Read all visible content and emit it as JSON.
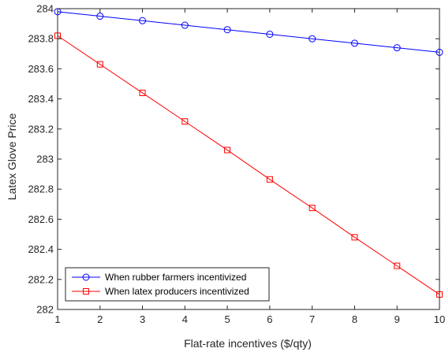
{
  "chart_data": {
    "type": "line",
    "title": "",
    "xlabel": "Flat-rate incentives ($/qty)",
    "ylabel": "Latex Glove Price",
    "xlim": [
      1,
      10
    ],
    "ylim": [
      282,
      284
    ],
    "xticks": [
      1,
      2,
      3,
      4,
      5,
      6,
      7,
      8,
      9,
      10
    ],
    "yticks": [
      282,
      282.2,
      282.4,
      282.6,
      282.8,
      283,
      283.2,
      283.4,
      283.6,
      283.8,
      284
    ],
    "x_tick_labels": [
      "1",
      "2",
      "3",
      "4",
      "5",
      "6",
      "7",
      "8",
      "9",
      "10"
    ],
    "y_tick_labels": [
      "282",
      "282.2",
      "282.4",
      "282.6",
      "282.8",
      "283",
      "283.2",
      "283.4",
      "283.6",
      "283.8",
      "284"
    ],
    "grid": false,
    "legend_position": "bottom-left",
    "x": [
      1,
      2,
      3,
      4,
      5,
      6,
      7,
      8,
      9,
      10
    ],
    "series": [
      {
        "name": "When rubber farmers incentivized",
        "color": "#0000ff",
        "marker": "circle",
        "values": [
          283.98,
          283.95,
          283.92,
          283.89,
          283.86,
          283.83,
          283.8,
          283.77,
          283.74,
          283.71
        ]
      },
      {
        "name": "When latex producers incentivized",
        "color": "#ff0000",
        "marker": "square",
        "values": [
          283.82,
          283.63,
          283.44,
          283.25,
          283.06,
          282.865,
          282.675,
          282.48,
          282.29,
          282.1
        ]
      }
    ]
  }
}
